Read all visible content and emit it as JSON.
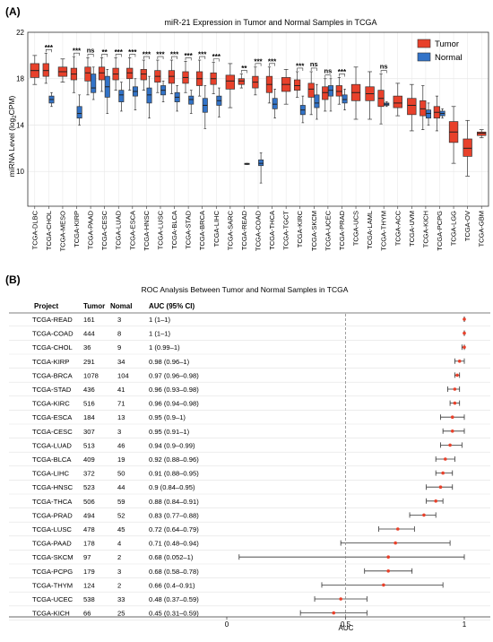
{
  "colors": {
    "tumor": "#e8412b",
    "normal": "#3273c8",
    "forest_point": "#e8412b",
    "grid": "#e6e6e6"
  },
  "chart_data": [
    {
      "panel_label": "(A)",
      "type": "box",
      "title": "miR-21 Expression in Tumor and Normal Samples in TCGA",
      "ylabel_main": "miRNA Level (log",
      "ylabel_sub": "2",
      "ylabel_tail": "CPM)",
      "ylim": [
        7,
        22
      ],
      "yticks": [
        10,
        14,
        18,
        22
      ],
      "grid": true,
      "legend_position": "top-right",
      "legend": [
        "Tumor",
        "Normal"
      ],
      "categories": [
        "TCGA-DLBC",
        "TCGA-CHOL",
        "TCGA-MESO",
        "TCGA-KIRP",
        "TCGA-PAAD",
        "TCGA-CESC",
        "TCGA-LUAD",
        "TCGA-ESCA",
        "TCGA-HNSC",
        "TCGA-LUSC",
        "TCGA-BLCA",
        "TCGA-STAD",
        "TCGA-BRCA",
        "TCGA-LIHC",
        "TCGA-SARC",
        "TCGA-READ",
        "TCGA-COAD",
        "TCGA-THCA",
        "TCGA-TGCT",
        "TCGA-KIRC",
        "TCGA-SKCM",
        "TCGA-UCEC",
        "TCGA-PRAD",
        "TCGA-UCS",
        "TCGA-LAML",
        "TCGA-THYM",
        "TCGA-ACC",
        "TCGA-UVM",
        "TCGA-KICH",
        "TCGA-PCPG",
        "TCGA-LGG",
        "TCGA-OV",
        "TCGA-GBM"
      ],
      "tumor": [
        [
          17.5,
          18.1,
          18.7,
          19.3,
          20.0
        ],
        [
          17.6,
          18.2,
          18.7,
          19.3,
          20.2
        ],
        [
          17.7,
          18.2,
          18.6,
          19.0,
          19.7
        ],
        [
          16.8,
          17.9,
          18.4,
          18.9,
          19.9
        ],
        [
          16.6,
          17.8,
          18.5,
          19.0,
          19.8
        ],
        [
          16.9,
          17.9,
          18.5,
          19.0,
          19.8
        ],
        [
          17.0,
          17.9,
          18.4,
          18.9,
          19.8
        ],
        [
          17.0,
          18.0,
          18.5,
          18.9,
          19.8
        ],
        [
          17.0,
          17.9,
          18.4,
          18.8,
          19.6
        ],
        [
          16.8,
          17.7,
          18.2,
          18.7,
          19.6
        ],
        [
          16.7,
          17.6,
          18.2,
          18.7,
          19.6
        ],
        [
          16.8,
          17.6,
          18.1,
          18.6,
          19.5
        ],
        [
          16.5,
          17.4,
          18.0,
          18.6,
          19.6
        ],
        [
          16.7,
          17.5,
          18.0,
          18.5,
          19.4
        ],
        [
          15.5,
          17.1,
          17.8,
          18.3,
          19.3
        ],
        [
          17.2,
          17.5,
          17.8,
          18.0,
          18.4
        ],
        [
          16.6,
          17.2,
          17.7,
          18.2,
          19.0
        ],
        [
          15.9,
          16.8,
          17.5,
          18.2,
          19.0
        ],
        [
          15.8,
          16.9,
          17.5,
          18.1,
          18.8
        ],
        [
          16.4,
          17.0,
          17.4,
          17.9,
          18.6
        ],
        [
          14.9,
          16.4,
          17.1,
          17.6,
          18.6
        ],
        [
          15.2,
          16.2,
          16.8,
          17.3,
          18.0
        ],
        [
          15.8,
          16.5,
          16.9,
          17.4,
          18.1
        ],
        [
          14.5,
          16.1,
          16.8,
          17.5,
          19.0
        ],
        [
          14.5,
          16.1,
          16.7,
          17.3,
          18.6
        ],
        [
          14.1,
          15.6,
          16.3,
          17.0,
          18.4
        ],
        [
          14.8,
          15.5,
          15.9,
          16.5,
          17.6
        ],
        [
          13.5,
          14.9,
          15.7,
          16.3,
          17.5
        ],
        [
          13.6,
          14.8,
          15.4,
          16.1,
          17.4
        ],
        [
          13.5,
          14.6,
          15.1,
          15.6,
          16.5
        ],
        [
          10.7,
          12.5,
          13.4,
          14.3,
          15.6
        ],
        [
          9.6,
          11.3,
          12.0,
          12.8,
          14.4
        ],
        [
          12.9,
          13.1,
          13.3,
          13.4,
          13.6
        ]
      ],
      "normal": [
        null,
        [
          15.6,
          15.9,
          16.2,
          16.5,
          16.8
        ],
        null,
        [
          14.0,
          14.6,
          15.0,
          15.6,
          16.6
        ],
        [
          16.2,
          16.8,
          17.2,
          18.4,
          19.0
        ],
        [
          15.0,
          16.4,
          17.3,
          18.2,
          18.8
        ],
        [
          15.2,
          16.0,
          16.6,
          17.0,
          17.7
        ],
        [
          15.3,
          16.5,
          16.9,
          17.3,
          18.0
        ],
        [
          14.6,
          15.9,
          16.6,
          17.2,
          18.2
        ],
        [
          16.0,
          16.6,
          17.0,
          17.4,
          17.8
        ],
        [
          15.2,
          16.0,
          16.4,
          16.8,
          17.4
        ],
        [
          15.0,
          15.8,
          16.2,
          16.5,
          17.0
        ],
        [
          13.7,
          15.1,
          15.7,
          16.3,
          17.4
        ],
        [
          14.7,
          15.7,
          16.1,
          16.5,
          17.2
        ],
        null,
        [
          10.6,
          10.6,
          10.65,
          10.7,
          10.7
        ],
        [
          9.0,
          10.5,
          10.7,
          11.0,
          11.6
        ],
        [
          14.6,
          15.4,
          15.8,
          16.3,
          17.1
        ],
        null,
        [
          14.2,
          14.9,
          15.3,
          15.7,
          16.5
        ],
        [
          14.5,
          15.5,
          15.9,
          16.6,
          17.5
        ],
        [
          15.2,
          16.5,
          17.0,
          17.4,
          18.0
        ],
        [
          15.3,
          15.9,
          16.2,
          16.6,
          17.1
        ],
        null,
        null,
        [
          15.6,
          15.7,
          15.8,
          15.9,
          16.0
        ],
        null,
        null,
        [
          14.0,
          14.6,
          15.0,
          15.3,
          15.9
        ],
        [
          14.6,
          14.8,
          15.0,
          15.2,
          15.4
        ],
        null,
        null,
        null
      ],
      "significance": [
        "",
        "***",
        "",
        "***",
        "ns",
        "**",
        "***",
        "***",
        "***",
        "***",
        "***",
        "***",
        "***",
        "***",
        "",
        "**",
        "***",
        "***",
        "",
        "***",
        "ns",
        "ns",
        "***",
        "",
        "",
        "ns",
        "",
        "",
        "",
        "",
        "",
        "",
        ""
      ]
    },
    {
      "panel_label": "(B)",
      "type": "forest",
      "title": "ROC Analysis Between Tumor and Normal Samples in TCGA",
      "columns": [
        "Project",
        "Tumor",
        "Nomal",
        "AUC (95% CI)"
      ],
      "xlabel": "AUC",
      "xlim": [
        0,
        1
      ],
      "xticks": [
        0,
        0.5,
        1
      ],
      "xtick_labels": [
        "0",
        "0.5",
        "1"
      ],
      "reference_line": 0.5,
      "rows": [
        {
          "project": "TCGA-READ",
          "tumor": "161",
          "normal": "3",
          "label": "1 (1–1)",
          "auc": 1,
          "lo": 1,
          "hi": 1
        },
        {
          "project": "TCGA-COAD",
          "tumor": "444",
          "normal": "8",
          "label": "1 (1–1)",
          "auc": 1,
          "lo": 1,
          "hi": 1
        },
        {
          "project": "TCGA-CHOL",
          "tumor": "36",
          "normal": "9",
          "label": "1 (0.99–1)",
          "auc": 1,
          "lo": 0.99,
          "hi": 1
        },
        {
          "project": "TCGA-KIRP",
          "tumor": "291",
          "normal": "34",
          "label": "0.98 (0.96–1)",
          "auc": 0.98,
          "lo": 0.96,
          "hi": 1
        },
        {
          "project": "TCGA-BRCA",
          "tumor": "1078",
          "normal": "104",
          "label": "0.97 (0.96–0.98)",
          "auc": 0.97,
          "lo": 0.96,
          "hi": 0.98
        },
        {
          "project": "TCGA-STAD",
          "tumor": "436",
          "normal": "41",
          "label": "0.96 (0.93–0.98)",
          "auc": 0.96,
          "lo": 0.93,
          "hi": 0.98
        },
        {
          "project": "TCGA-KIRC",
          "tumor": "516",
          "normal": "71",
          "label": "0.96 (0.94–0.98)",
          "auc": 0.96,
          "lo": 0.94,
          "hi": 0.98
        },
        {
          "project": "TCGA-ESCA",
          "tumor": "184",
          "normal": "13",
          "label": "0.95 (0.9–1)",
          "auc": 0.95,
          "lo": 0.9,
          "hi": 1
        },
        {
          "project": "TCGA-CESC",
          "tumor": "307",
          "normal": "3",
          "label": "0.95 (0.91–1)",
          "auc": 0.95,
          "lo": 0.91,
          "hi": 1
        },
        {
          "project": "TCGA-LUAD",
          "tumor": "513",
          "normal": "46",
          "label": "0.94 (0.9–0.99)",
          "auc": 0.94,
          "lo": 0.9,
          "hi": 0.99
        },
        {
          "project": "TCGA-BLCA",
          "tumor": "409",
          "normal": "19",
          "label": "0.92 (0.88–0.96)",
          "auc": 0.92,
          "lo": 0.88,
          "hi": 0.96
        },
        {
          "project": "TCGA-LIHC",
          "tumor": "372",
          "normal": "50",
          "label": "0.91 (0.88–0.95)",
          "auc": 0.91,
          "lo": 0.88,
          "hi": 0.95
        },
        {
          "project": "TCGA-HNSC",
          "tumor": "523",
          "normal": "44",
          "label": "0.9 (0.84–0.95)",
          "auc": 0.9,
          "lo": 0.84,
          "hi": 0.95
        },
        {
          "project": "TCGA-THCA",
          "tumor": "506",
          "normal": "59",
          "label": "0.88 (0.84–0.91)",
          "auc": 0.88,
          "lo": 0.84,
          "hi": 0.91
        },
        {
          "project": "TCGA-PRAD",
          "tumor": "494",
          "normal": "52",
          "label": "0.83 (0.77–0.88)",
          "auc": 0.83,
          "lo": 0.77,
          "hi": 0.88
        },
        {
          "project": "TCGA-LUSC",
          "tumor": "478",
          "normal": "45",
          "label": "0.72 (0.64–0.79)",
          "auc": 0.72,
          "lo": 0.64,
          "hi": 0.79
        },
        {
          "project": "TCGA-PAAD",
          "tumor": "178",
          "normal": "4",
          "label": "0.71 (0.48–0.94)",
          "auc": 0.71,
          "lo": 0.48,
          "hi": 0.94
        },
        {
          "project": "TCGA-SKCM",
          "tumor": "97",
          "normal": "2",
          "label": "0.68 (0.052–1)",
          "auc": 0.68,
          "lo": 0.052,
          "hi": 1
        },
        {
          "project": "TCGA-PCPG",
          "tumor": "179",
          "normal": "3",
          "label": "0.68 (0.58–0.78)",
          "auc": 0.68,
          "lo": 0.58,
          "hi": 0.78
        },
        {
          "project": "TCGA-THYM",
          "tumor": "124",
          "normal": "2",
          "label": "0.66 (0.4–0.91)",
          "auc": 0.66,
          "lo": 0.4,
          "hi": 0.91
        },
        {
          "project": "TCGA-UCEC",
          "tumor": "538",
          "normal": "33",
          "label": "0.48 (0.37–0.59)",
          "auc": 0.48,
          "lo": 0.37,
          "hi": 0.59
        },
        {
          "project": "TCGA-KICH",
          "tumor": "66",
          "normal": "25",
          "label": "0.45 (0.31–0.59)",
          "auc": 0.45,
          "lo": 0.31,
          "hi": 0.59
        }
      ]
    }
  ]
}
